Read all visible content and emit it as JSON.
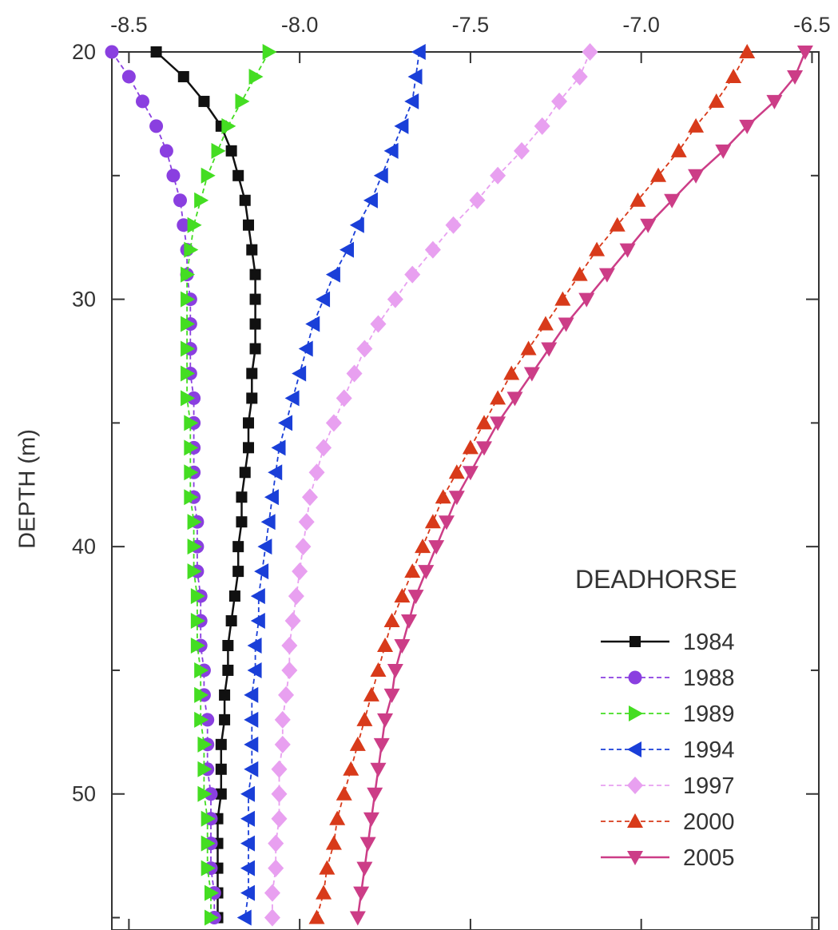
{
  "chart_data": {
    "type": "line",
    "title": "",
    "xlabel": "",
    "ylabel": "DEPTH (m)",
    "xlim": [
      -8.55,
      -6.48
    ],
    "ylim": [
      20,
      55.5
    ],
    "y_inverted": true,
    "x_axis_position": "top",
    "xticks": [
      -8.5,
      -8.0,
      -7.5,
      -7.0,
      -6.5
    ],
    "xtick_labels": [
      "-8.5",
      "-8.0",
      "-7.5",
      "-7.0",
      "-6.5"
    ],
    "yticks": [
      20,
      30,
      40,
      50
    ],
    "ytick_labels": [
      "20",
      "30",
      "40",
      "50"
    ],
    "grid": false,
    "legend": {
      "title": "DEADHORSE",
      "placement": "bottom-right"
    },
    "depths": [
      20,
      21,
      22,
      23,
      24,
      25,
      26,
      27,
      28,
      29,
      30,
      31,
      32,
      33,
      34,
      35,
      36,
      37,
      38,
      39,
      40,
      41,
      42,
      43,
      44,
      45,
      46,
      47,
      48,
      49,
      50,
      51,
      52,
      53,
      54,
      55
    ],
    "series": [
      {
        "name": "1984",
        "color": "#111111",
        "marker": "square",
        "line": "solid",
        "values": [
          -8.42,
          -8.34,
          -8.28,
          -8.23,
          -8.2,
          -8.18,
          -8.16,
          -8.15,
          -8.14,
          -8.13,
          -8.13,
          -8.13,
          -8.13,
          -8.14,
          -8.14,
          -8.15,
          -8.15,
          -8.16,
          -8.17,
          -8.17,
          -8.18,
          -8.18,
          -8.19,
          -8.2,
          -8.21,
          -8.21,
          -8.22,
          -8.22,
          -8.23,
          -8.23,
          -8.23,
          -8.24,
          -8.24,
          -8.24,
          -8.24,
          -8.24
        ]
      },
      {
        "name": "1988",
        "color": "#8a3fe0",
        "marker": "circle",
        "line": "dashed",
        "values": [
          -8.55,
          -8.5,
          -8.46,
          -8.42,
          -8.39,
          -8.37,
          -8.35,
          -8.34,
          -8.33,
          -8.33,
          -8.32,
          -8.32,
          -8.32,
          -8.32,
          -8.31,
          -8.31,
          -8.31,
          -8.31,
          -8.31,
          -8.3,
          -8.3,
          -8.3,
          -8.29,
          -8.29,
          -8.29,
          -8.28,
          -8.28,
          -8.27,
          -8.27,
          -8.27,
          -8.26,
          -8.26,
          -8.26,
          -8.26,
          -8.25,
          -8.25
        ]
      },
      {
        "name": "1989",
        "color": "#44dd22",
        "marker": "triangle-right",
        "line": "dashed",
        "values": [
          -8.09,
          -8.13,
          -8.17,
          -8.21,
          -8.24,
          -8.27,
          -8.29,
          -8.31,
          -8.32,
          -8.33,
          -8.33,
          -8.33,
          -8.33,
          -8.33,
          -8.33,
          -8.32,
          -8.32,
          -8.32,
          -8.32,
          -8.31,
          -8.31,
          -8.31,
          -8.3,
          -8.3,
          -8.3,
          -8.29,
          -8.29,
          -8.29,
          -8.28,
          -8.28,
          -8.28,
          -8.27,
          -8.27,
          -8.27,
          -8.26,
          -8.26
        ]
      },
      {
        "name": "1994",
        "color": "#1a3fd8",
        "marker": "triangle-left",
        "line": "dashed",
        "values": [
          -7.65,
          -7.66,
          -7.67,
          -7.7,
          -7.73,
          -7.76,
          -7.79,
          -7.83,
          -7.86,
          -7.9,
          -7.93,
          -7.96,
          -7.98,
          -8.0,
          -8.02,
          -8.04,
          -8.06,
          -8.07,
          -8.08,
          -8.09,
          -8.1,
          -8.11,
          -8.12,
          -8.12,
          -8.13,
          -8.13,
          -8.14,
          -8.14,
          -8.14,
          -8.14,
          -8.15,
          -8.15,
          -8.15,
          -8.15,
          -8.15,
          -8.16
        ]
      },
      {
        "name": "1997",
        "color": "#e8a0f0",
        "marker": "diamond",
        "line": "dashed",
        "values": [
          -7.15,
          -7.18,
          -7.24,
          -7.29,
          -7.35,
          -7.42,
          -7.48,
          -7.55,
          -7.61,
          -7.67,
          -7.72,
          -7.77,
          -7.81,
          -7.84,
          -7.87,
          -7.9,
          -7.93,
          -7.95,
          -7.97,
          -7.98,
          -7.99,
          -8.0,
          -8.01,
          -8.02,
          -8.03,
          -8.03,
          -8.04,
          -8.05,
          -8.05,
          -8.06,
          -8.06,
          -8.06,
          -8.07,
          -8.07,
          -8.08,
          -8.08
        ]
      },
      {
        "name": "2000",
        "color": "#d83a1a",
        "marker": "triangle-up",
        "line": "dashed",
        "values": [
          -6.69,
          -6.73,
          -6.78,
          -6.84,
          -6.89,
          -6.95,
          -7.01,
          -7.07,
          -7.13,
          -7.18,
          -7.23,
          -7.28,
          -7.33,
          -7.38,
          -7.42,
          -7.46,
          -7.5,
          -7.54,
          -7.58,
          -7.61,
          -7.64,
          -7.67,
          -7.7,
          -7.73,
          -7.75,
          -7.77,
          -7.79,
          -7.81,
          -7.83,
          -7.85,
          -7.87,
          -7.89,
          -7.9,
          -7.92,
          -7.93,
          -7.95
        ]
      },
      {
        "name": "2005",
        "color": "#cc3d87",
        "marker": "triangle-down",
        "line": "solid",
        "values": [
          -6.52,
          -6.55,
          -6.61,
          -6.69,
          -6.76,
          -6.84,
          -6.91,
          -6.98,
          -7.04,
          -7.1,
          -7.16,
          -7.22,
          -7.27,
          -7.32,
          -7.37,
          -7.42,
          -7.46,
          -7.5,
          -7.54,
          -7.57,
          -7.6,
          -7.63,
          -7.66,
          -7.68,
          -7.7,
          -7.72,
          -7.73,
          -7.75,
          -7.76,
          -7.77,
          -7.78,
          -7.79,
          -7.8,
          -7.81,
          -7.82,
          -7.83
        ]
      }
    ]
  }
}
